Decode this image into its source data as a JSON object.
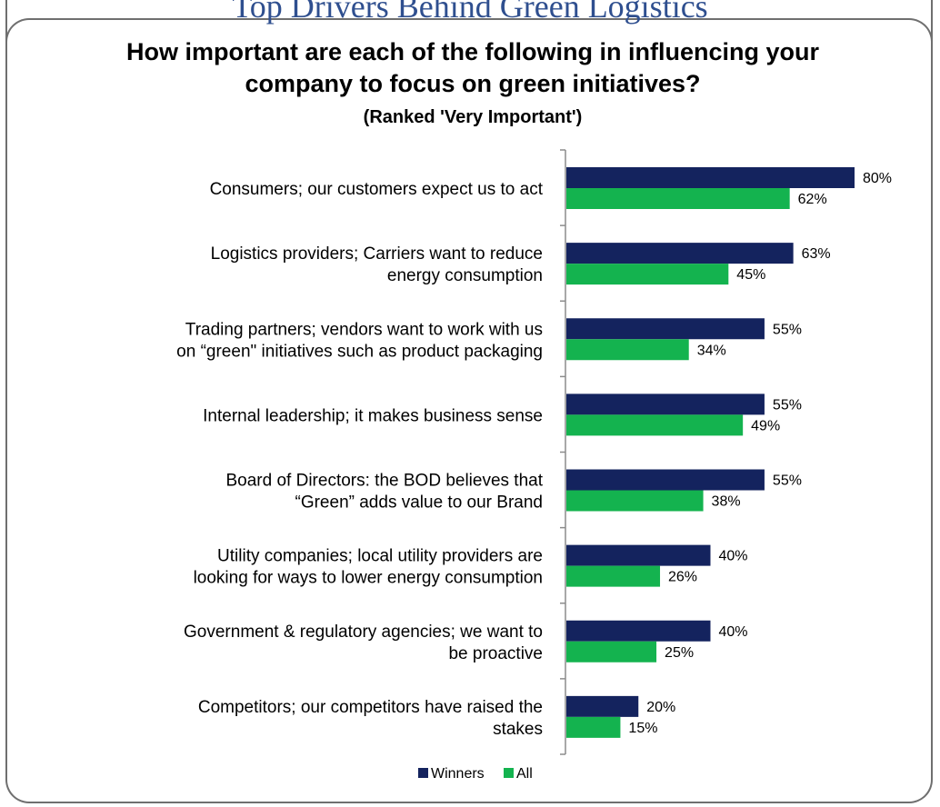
{
  "header": {
    "banner_text": "Top Drivers Behind Green Logistics",
    "title_line1": "How important are each of the following in influencing your",
    "title_line2": "company to focus on green initiatives?",
    "subtitle": "(Ranked 'Very Important')"
  },
  "colors": {
    "winners": "#14235e",
    "all": "#14b34f",
    "axis": "#8c8c8c"
  },
  "chart_data": {
    "type": "bar",
    "orientation": "horizontal",
    "title": "How important are each of the following in influencing your company to focus on green initiatives?",
    "subtitle": "(Ranked 'Very Important')",
    "categories": [
      [
        "Consumers; our customers expect us to act"
      ],
      [
        "Logistics providers; Carriers want to reduce",
        "energy consumption"
      ],
      [
        "Trading partners; vendors want to work with us",
        "on “green\" initiatives such as product packaging"
      ],
      [
        "Internal leadership; it makes business sense"
      ],
      [
        "Board of Directors: the BOD believes that",
        "“Green” adds value to our Brand"
      ],
      [
        "Utility companies; local utility providers are",
        "looking for ways to lower energy consumption"
      ],
      [
        "Government & regulatory agencies; we want to",
        "be proactive"
      ],
      [
        "Competitors; our competitors have raised the",
        "stakes"
      ]
    ],
    "series": [
      {
        "name": "Winners",
        "values": [
          80,
          63,
          55,
          55,
          55,
          40,
          40,
          20
        ],
        "labels": [
          "80%",
          "63%",
          "55%",
          "55%",
          "55%",
          "40%",
          "40%",
          "20%"
        ]
      },
      {
        "name": "All",
        "values": [
          62,
          45,
          34,
          49,
          38,
          26,
          25,
          15
        ],
        "labels": [
          "62%",
          "45%",
          "34%",
          "49%",
          "38%",
          "26%",
          "25%",
          "15%"
        ]
      }
    ],
    "value_unit": "%",
    "xlim": [
      0,
      100
    ],
    "grid": false,
    "legend_position": "bottom"
  }
}
